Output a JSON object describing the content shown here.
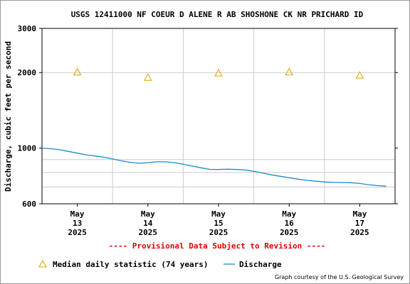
{
  "chart_data": {
    "type": "line",
    "title": "USGS 12411000 NF COEUR D ALENE R AB SHOSHONE CK NR PRICHARD ID",
    "ylabel": "Discharge, cubic feet per second",
    "xlabel": "",
    "yscale": "log",
    "ylim": [
      600,
      3000
    ],
    "yticks": [
      600,
      1000,
      2000,
      3000
    ],
    "ytick_labels": [
      "600",
      "1000",
      "2000",
      "3000"
    ],
    "xlim": [
      "2025-05-12T12:00",
      "2025-05-17T12:00"
    ],
    "xticks": [
      {
        "x": "2025-05-13",
        "label": [
          "May",
          "13",
          "2025"
        ]
      },
      {
        "x": "2025-05-14",
        "label": [
          "May",
          "14",
          "2025"
        ]
      },
      {
        "x": "2025-05-15",
        "label": [
          "May",
          "15",
          "2025"
        ]
      },
      {
        "x": "2025-05-16",
        "label": [
          "May",
          "16",
          "2025"
        ]
      },
      {
        "x": "2025-05-17",
        "label": [
          "May",
          "17",
          "2025"
        ]
      }
    ],
    "vertical_grid": [
      "2025-05-13T12:00",
      "2025-05-14T12:00",
      "2025-05-15T12:00",
      "2025-05-16T12:00"
    ],
    "horizontal_grid": [
      700,
      800,
      900,
      2000
    ],
    "grid": true,
    "series": [
      {
        "name": "Discharge",
        "color": "#1b8ac8",
        "style": "line",
        "points": [
          [
            "2025-05-12T12:00",
            1000
          ],
          [
            "2025-05-12T15:00",
            995
          ],
          [
            "2025-05-12T18:00",
            985
          ],
          [
            "2025-05-12T21:00",
            970
          ],
          [
            "2025-05-13T00:00",
            955
          ],
          [
            "2025-05-13T03:00",
            940
          ],
          [
            "2025-05-13T06:00",
            930
          ],
          [
            "2025-05-13T09:00",
            920
          ],
          [
            "2025-05-13T12:00",
            905
          ],
          [
            "2025-05-13T15:00",
            890
          ],
          [
            "2025-05-13T18:00",
            878
          ],
          [
            "2025-05-13T21:00",
            870
          ],
          [
            "2025-05-14T00:00",
            875
          ],
          [
            "2025-05-14T03:00",
            882
          ],
          [
            "2025-05-14T06:00",
            882
          ],
          [
            "2025-05-14T09:00",
            875
          ],
          [
            "2025-05-14T12:00",
            862
          ],
          [
            "2025-05-14T15:00",
            848
          ],
          [
            "2025-05-14T18:00",
            835
          ],
          [
            "2025-05-14T21:00",
            823
          ],
          [
            "2025-05-15T00:00",
            822
          ],
          [
            "2025-05-15T03:00",
            824
          ],
          [
            "2025-05-15T06:00",
            822
          ],
          [
            "2025-05-15T09:00",
            818
          ],
          [
            "2025-05-15T12:00",
            808
          ],
          [
            "2025-05-15T15:00",
            795
          ],
          [
            "2025-05-15T18:00",
            782
          ],
          [
            "2025-05-15T21:00",
            772
          ],
          [
            "2025-05-16T00:00",
            762
          ],
          [
            "2025-05-16T03:00",
            752
          ],
          [
            "2025-05-16T06:00",
            744
          ],
          [
            "2025-05-16T09:00",
            738
          ],
          [
            "2025-05-16T12:00",
            733
          ],
          [
            "2025-05-16T15:00",
            730
          ],
          [
            "2025-05-16T18:00",
            729
          ],
          [
            "2025-05-16T21:00",
            728
          ],
          [
            "2025-05-17T00:00",
            723
          ],
          [
            "2025-05-17T03:00",
            715
          ],
          [
            "2025-05-17T06:00",
            709
          ],
          [
            "2025-05-17T09:00",
            705
          ]
        ]
      },
      {
        "name": "Median daily statistic (74 years)",
        "color": "#e0a000",
        "style": "marker-triangle",
        "points": [
          [
            "2025-05-13",
            2010
          ],
          [
            "2025-05-14",
            1910
          ],
          [
            "2025-05-15",
            1990
          ],
          [
            "2025-05-16",
            2010
          ],
          [
            "2025-05-17",
            1950
          ]
        ]
      }
    ],
    "legend_position": "bottom",
    "annotation": "---- Provisional Data Subject to Revision ----",
    "annotation_color": "#e00000",
    "credit": "Graph courtesy of the U.S. Geological Survey"
  }
}
